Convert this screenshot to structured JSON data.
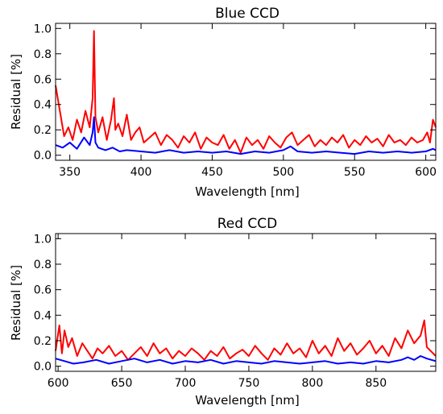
{
  "chart_data": [
    {
      "type": "line",
      "title": "Blue CCD",
      "xlabel": "Wavelength [nm]",
      "ylabel": "Residual [%]",
      "xlim": [
        340,
        607
      ],
      "ylim": [
        -0.04,
        1.04
      ],
      "xticks": [
        350,
        400,
        450,
        500,
        550,
        600
      ],
      "yticks": [
        0.0,
        0.2,
        0.4,
        0.6,
        0.8,
        1.0
      ],
      "ytick_labels": [
        "0.0",
        "0.2",
        "0.4",
        "0.6",
        "0.8",
        "1.0"
      ],
      "grid": false,
      "series": [
        {
          "color": "#ff0000",
          "x": [
            340,
            343,
            346,
            349,
            352,
            355,
            358,
            361,
            364,
            366,
            367,
            368,
            370,
            373,
            376,
            379,
            381,
            382,
            384,
            387,
            390,
            393,
            396,
            399,
            402,
            406,
            410,
            414,
            418,
            422,
            426,
            430,
            434,
            438,
            442,
            446,
            450,
            454,
            458,
            462,
            466,
            470,
            474,
            478,
            482,
            486,
            490,
            494,
            498,
            502,
            506,
            510,
            514,
            518,
            522,
            526,
            530,
            534,
            538,
            542,
            546,
            550,
            554,
            558,
            562,
            566,
            570,
            574,
            578,
            582,
            586,
            590,
            594,
            598,
            601,
            603,
            605,
            607
          ],
          "y": [
            0.55,
            0.35,
            0.15,
            0.22,
            0.12,
            0.28,
            0.18,
            0.35,
            0.22,
            0.45,
            0.98,
            0.3,
            0.18,
            0.3,
            0.12,
            0.28,
            0.45,
            0.2,
            0.25,
            0.15,
            0.32,
            0.12,
            0.18,
            0.22,
            0.1,
            0.14,
            0.18,
            0.08,
            0.16,
            0.12,
            0.06,
            0.15,
            0.1,
            0.18,
            0.05,
            0.14,
            0.1,
            0.08,
            0.16,
            0.05,
            0.12,
            0.02,
            0.14,
            0.08,
            0.12,
            0.05,
            0.15,
            0.1,
            0.06,
            0.14,
            0.18,
            0.08,
            0.12,
            0.16,
            0.07,
            0.12,
            0.08,
            0.14,
            0.1,
            0.16,
            0.06,
            0.12,
            0.08,
            0.15,
            0.1,
            0.13,
            0.07,
            0.16,
            0.1,
            0.12,
            0.08,
            0.14,
            0.1,
            0.12,
            0.18,
            0.1,
            0.28,
            0.22
          ]
        },
        {
          "color": "#0000ff",
          "x": [
            340,
            345,
            350,
            355,
            360,
            364,
            366,
            367,
            368,
            370,
            375,
            380,
            385,
            390,
            400,
            410,
            420,
            430,
            440,
            450,
            460,
            470,
            480,
            490,
            500,
            505,
            510,
            520,
            530,
            540,
            550,
            560,
            570,
            580,
            590,
            600,
            605,
            607
          ],
          "y": [
            0.08,
            0.06,
            0.1,
            0.05,
            0.14,
            0.08,
            0.18,
            0.3,
            0.1,
            0.06,
            0.04,
            0.06,
            0.03,
            0.04,
            0.03,
            0.02,
            0.04,
            0.02,
            0.03,
            0.02,
            0.03,
            0.01,
            0.03,
            0.02,
            0.04,
            0.07,
            0.03,
            0.02,
            0.03,
            0.02,
            0.01,
            0.03,
            0.02,
            0.03,
            0.02,
            0.03,
            0.05,
            0.04
          ]
        }
      ]
    },
    {
      "type": "line",
      "title": "Red CCD",
      "xlabel": "Wavelength [nm]",
      "ylabel": "Residual [%]",
      "xlim": [
        598,
        897
      ],
      "ylim": [
        -0.04,
        1.04
      ],
      "xticks": [
        600,
        650,
        700,
        750,
        800,
        850
      ],
      "yticks": [
        0.0,
        0.2,
        0.4,
        0.6,
        0.8,
        1.0
      ],
      "ytick_labels": [
        "0.0",
        "0.2",
        "0.4",
        "0.6",
        "0.8",
        "1.0"
      ],
      "grid": false,
      "series": [
        {
          "color": "#ff0000",
          "x": [
            598,
            601,
            603,
            605,
            608,
            611,
            615,
            619,
            623,
            627,
            631,
            635,
            640,
            645,
            650,
            655,
            660,
            665,
            670,
            675,
            680,
            685,
            690,
            695,
            700,
            705,
            710,
            715,
            720,
            725,
            730,
            735,
            740,
            745,
            750,
            755,
            760,
            765,
            770,
            775,
            780,
            785,
            790,
            795,
            800,
            805,
            810,
            815,
            820,
            825,
            830,
            835,
            840,
            845,
            850,
            855,
            860,
            865,
            870,
            875,
            880,
            885,
            888,
            890,
            893,
            897
          ],
          "y": [
            0.12,
            0.32,
            0.1,
            0.28,
            0.15,
            0.22,
            0.08,
            0.18,
            0.12,
            0.06,
            0.14,
            0.1,
            0.16,
            0.08,
            0.12,
            0.05,
            0.1,
            0.15,
            0.08,
            0.18,
            0.1,
            0.14,
            0.06,
            0.12,
            0.08,
            0.14,
            0.1,
            0.05,
            0.12,
            0.08,
            0.15,
            0.06,
            0.1,
            0.13,
            0.08,
            0.16,
            0.1,
            0.05,
            0.14,
            0.09,
            0.18,
            0.1,
            0.14,
            0.07,
            0.2,
            0.1,
            0.16,
            0.08,
            0.22,
            0.12,
            0.18,
            0.09,
            0.14,
            0.2,
            0.1,
            0.16,
            0.08,
            0.22,
            0.14,
            0.28,
            0.18,
            0.24,
            0.36,
            0.15,
            0.12,
            0.08
          ]
        },
        {
          "color": "#0000ff",
          "x": [
            598,
            605,
            612,
            620,
            630,
            640,
            650,
            660,
            670,
            680,
            690,
            700,
            710,
            720,
            730,
            740,
            750,
            760,
            770,
            780,
            790,
            800,
            810,
            820,
            830,
            840,
            850,
            860,
            870,
            875,
            880,
            885,
            890,
            897
          ],
          "y": [
            0.06,
            0.04,
            0.02,
            0.03,
            0.05,
            0.02,
            0.04,
            0.06,
            0.03,
            0.05,
            0.02,
            0.04,
            0.03,
            0.05,
            0.02,
            0.04,
            0.03,
            0.02,
            0.04,
            0.03,
            0.02,
            0.03,
            0.04,
            0.02,
            0.03,
            0.02,
            0.04,
            0.03,
            0.05,
            0.07,
            0.05,
            0.08,
            0.06,
            0.04
          ]
        }
      ]
    }
  ]
}
